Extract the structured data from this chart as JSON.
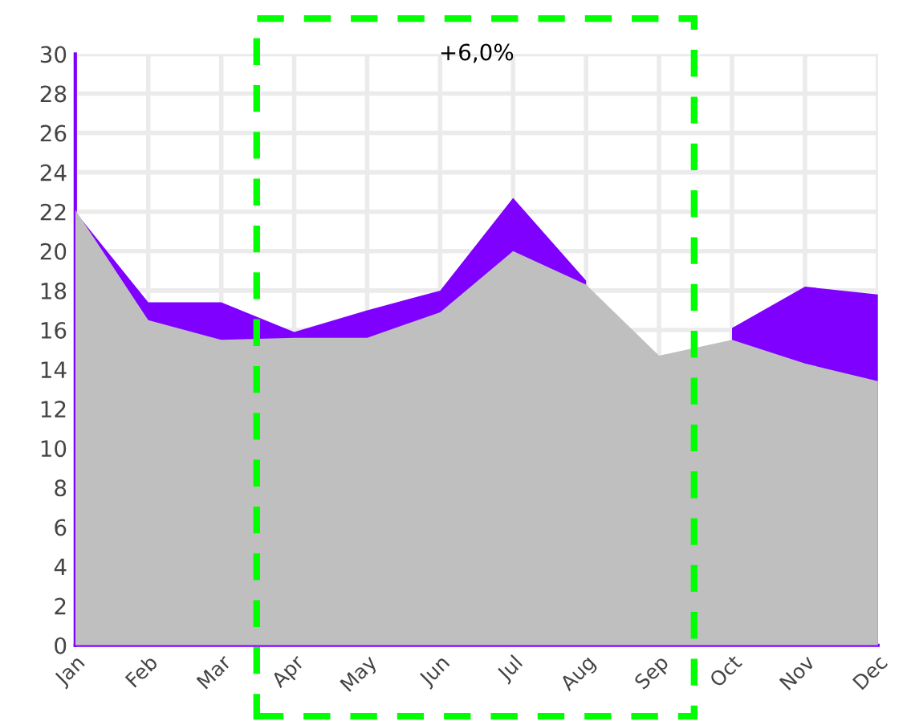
{
  "chart_data": {
    "type": "area",
    "categories": [
      "Jan",
      "Feb",
      "Mar",
      "Apr",
      "May",
      "Jun",
      "Jul",
      "Aug",
      "Sep",
      "Oct",
      "Nov",
      "Dec"
    ],
    "series": [
      {
        "color": "#8000ff",
        "values": [
          22.0,
          17.4,
          17.4,
          15.9,
          17.0,
          18.0,
          22.7,
          18.5,
          null,
          16.1,
          18.2,
          17.8
        ]
      },
      {
        "color": "#bfbfbf",
        "values": [
          22.1,
          16.5,
          15.5,
          15.6,
          15.6,
          16.9,
          20.0,
          18.3,
          14.7,
          15.5,
          14.3,
          13.4
        ]
      }
    ],
    "ylim": [
      0,
      30
    ],
    "yticks": [
      0,
      2,
      4,
      6,
      8,
      10,
      12,
      14,
      16,
      18,
      20,
      22,
      24,
      26,
      28,
      30
    ],
    "annotations": [
      "+6,0%"
    ],
    "grid": true
  }
}
